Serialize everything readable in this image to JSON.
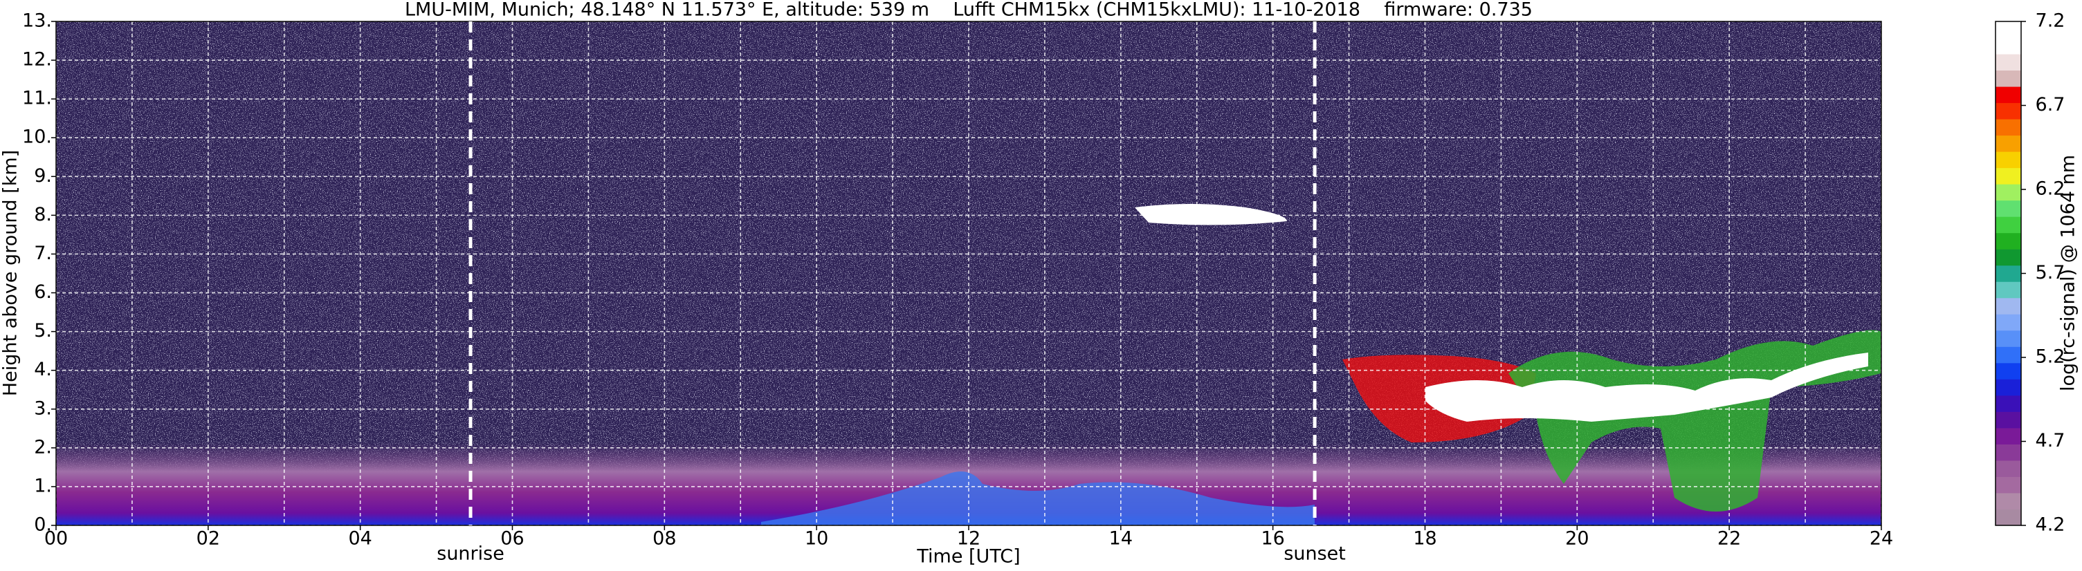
{
  "chart_data": {
    "type": "heatmap",
    "title": "LMU-MIM, Munich; 48.148° N 11.573° E, altitude: 539 m    Lufft CHM15kx (CHM15kxLMU): 11-10-2018    firmware: 0.735",
    "x_label": "Time [UTC]",
    "y_label": "Height above ground [km]",
    "colorbar_label": "log(rc-signal) @ 1064 nm",
    "xlim": [
      0,
      24
    ],
    "xticks": [
      {
        "value": 0,
        "label": "00"
      },
      {
        "value": 2,
        "label": "02"
      },
      {
        "value": 4,
        "label": "04"
      },
      {
        "value": 6,
        "label": "06"
      },
      {
        "value": 8,
        "label": "08"
      },
      {
        "value": 10,
        "label": "10"
      },
      12,
      14,
      16,
      18,
      20,
      22,
      24
    ],
    "x_minor_ticks": [
      1,
      3,
      5,
      7,
      9,
      11,
      13,
      15,
      17,
      19,
      21,
      23
    ],
    "ylim": [
      0,
      13
    ],
    "yticks": [
      {
        "value": 0,
        "label": "0."
      },
      {
        "value": 1,
        "label": "1."
      },
      {
        "value": 2,
        "label": "2."
      },
      {
        "value": 3,
        "label": "3."
      },
      {
        "value": 4,
        "label": "4."
      },
      {
        "value": 5,
        "label": "5."
      },
      {
        "value": 6,
        "label": "6."
      },
      {
        "value": 7,
        "label": "7."
      },
      {
        "value": 8,
        "label": "8."
      },
      {
        "value": 9,
        "label": "9."
      },
      {
        "value": 10,
        "label": "10."
      },
      {
        "value": 11,
        "label": "11."
      },
      {
        "value": 12,
        "label": "12."
      },
      {
        "value": 13,
        "label": "13."
      }
    ],
    "grid": true,
    "annotations": [
      {
        "label": "sunrise",
        "x": 5.45
      },
      {
        "label": "sunset",
        "x": 16.55
      }
    ],
    "clim": [
      4.2,
      7.2
    ],
    "cticks": [
      4.2,
      4.7,
      5.2,
      5.7,
      6.2,
      6.7,
      7.2
    ],
    "colormap": [
      "#a88aa2",
      "#b08aa8",
      "#a46aa0",
      "#9a5a9c",
      "#8a3a98",
      "#7a1a98",
      "#5a10a0",
      "#3a10b8",
      "#1a20d8",
      "#1040f0",
      "#3070f8",
      "#5890f8",
      "#80a8f8",
      "#a0b8f0",
      "#60c8c0",
      "#20a890",
      "#109830",
      "#20b020",
      "#40d040",
      "#60e070",
      "#a0f060",
      "#f0f020",
      "#f8d000",
      "#f8a000",
      "#f87000",
      "#f83000",
      "#f00000",
      "#d8b8b8",
      "#f0e0e0",
      "#ffffff",
      "#ffffff"
    ]
  }
}
